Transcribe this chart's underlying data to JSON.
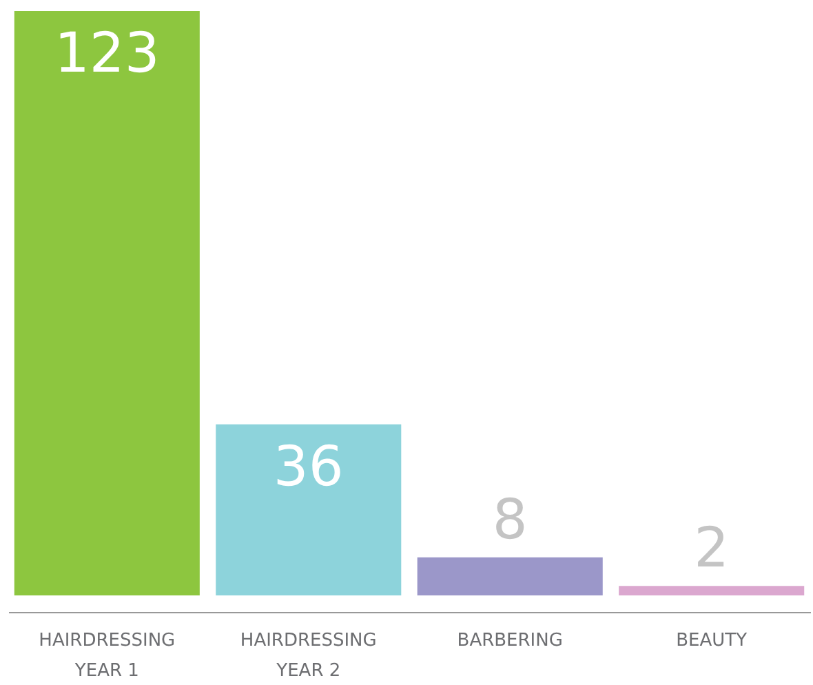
{
  "chart_data": {
    "type": "bar",
    "categories": [
      "HAIRDRESSING\nYEAR 1",
      "HAIRDRESSING\nYEAR 2",
      "BARBERING",
      "BEAUTY"
    ],
    "values": [
      123,
      36,
      8,
      2
    ],
    "colors": [
      "#8dc63f",
      "#8dd3db",
      "#9b97c9",
      "#dba7cf"
    ],
    "data_labels": true
  }
}
